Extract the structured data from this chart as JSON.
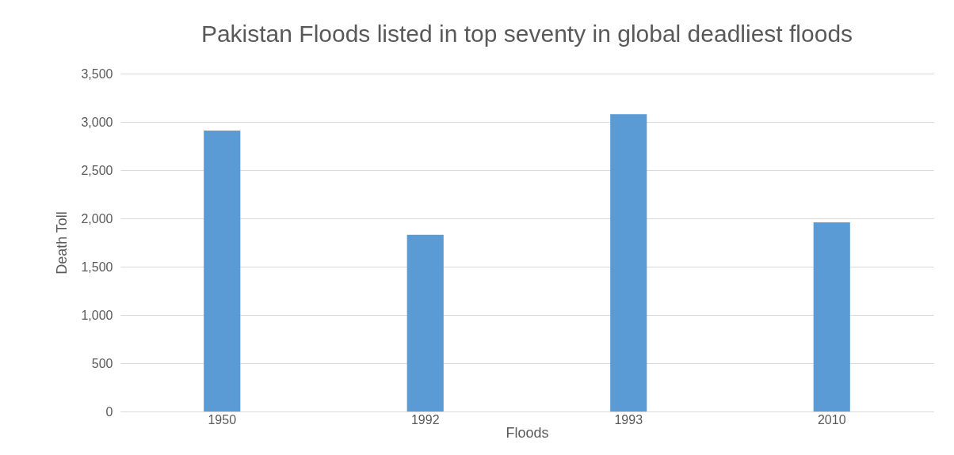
{
  "chart_data": {
    "type": "bar",
    "title": "Pakistan Floods listed in top seventy in global deadliest floods",
    "xlabel": "Floods",
    "ylabel": "Death Toll",
    "categories": [
      "1950",
      "1992",
      "1993",
      "2010"
    ],
    "series": [
      {
        "color": "#5b9bd5",
        "values": [
          2910,
          1830,
          3080,
          1960
        ]
      }
    ],
    "ylim": [
      0,
      3500
    ],
    "yticks": [
      0,
      500,
      {
        "value": 1000,
        "label": "1,000"
      },
      {
        "value": 1500,
        "label": "1,500"
      },
      {
        "value": 2000,
        "label": "2,000"
      },
      {
        "value": 2500,
        "label": "2,500"
      },
      {
        "value": 3000,
        "label": "3,000"
      },
      {
        "value": 3500,
        "label": "3,500"
      }
    ],
    "grid": "y",
    "legend": false
  }
}
